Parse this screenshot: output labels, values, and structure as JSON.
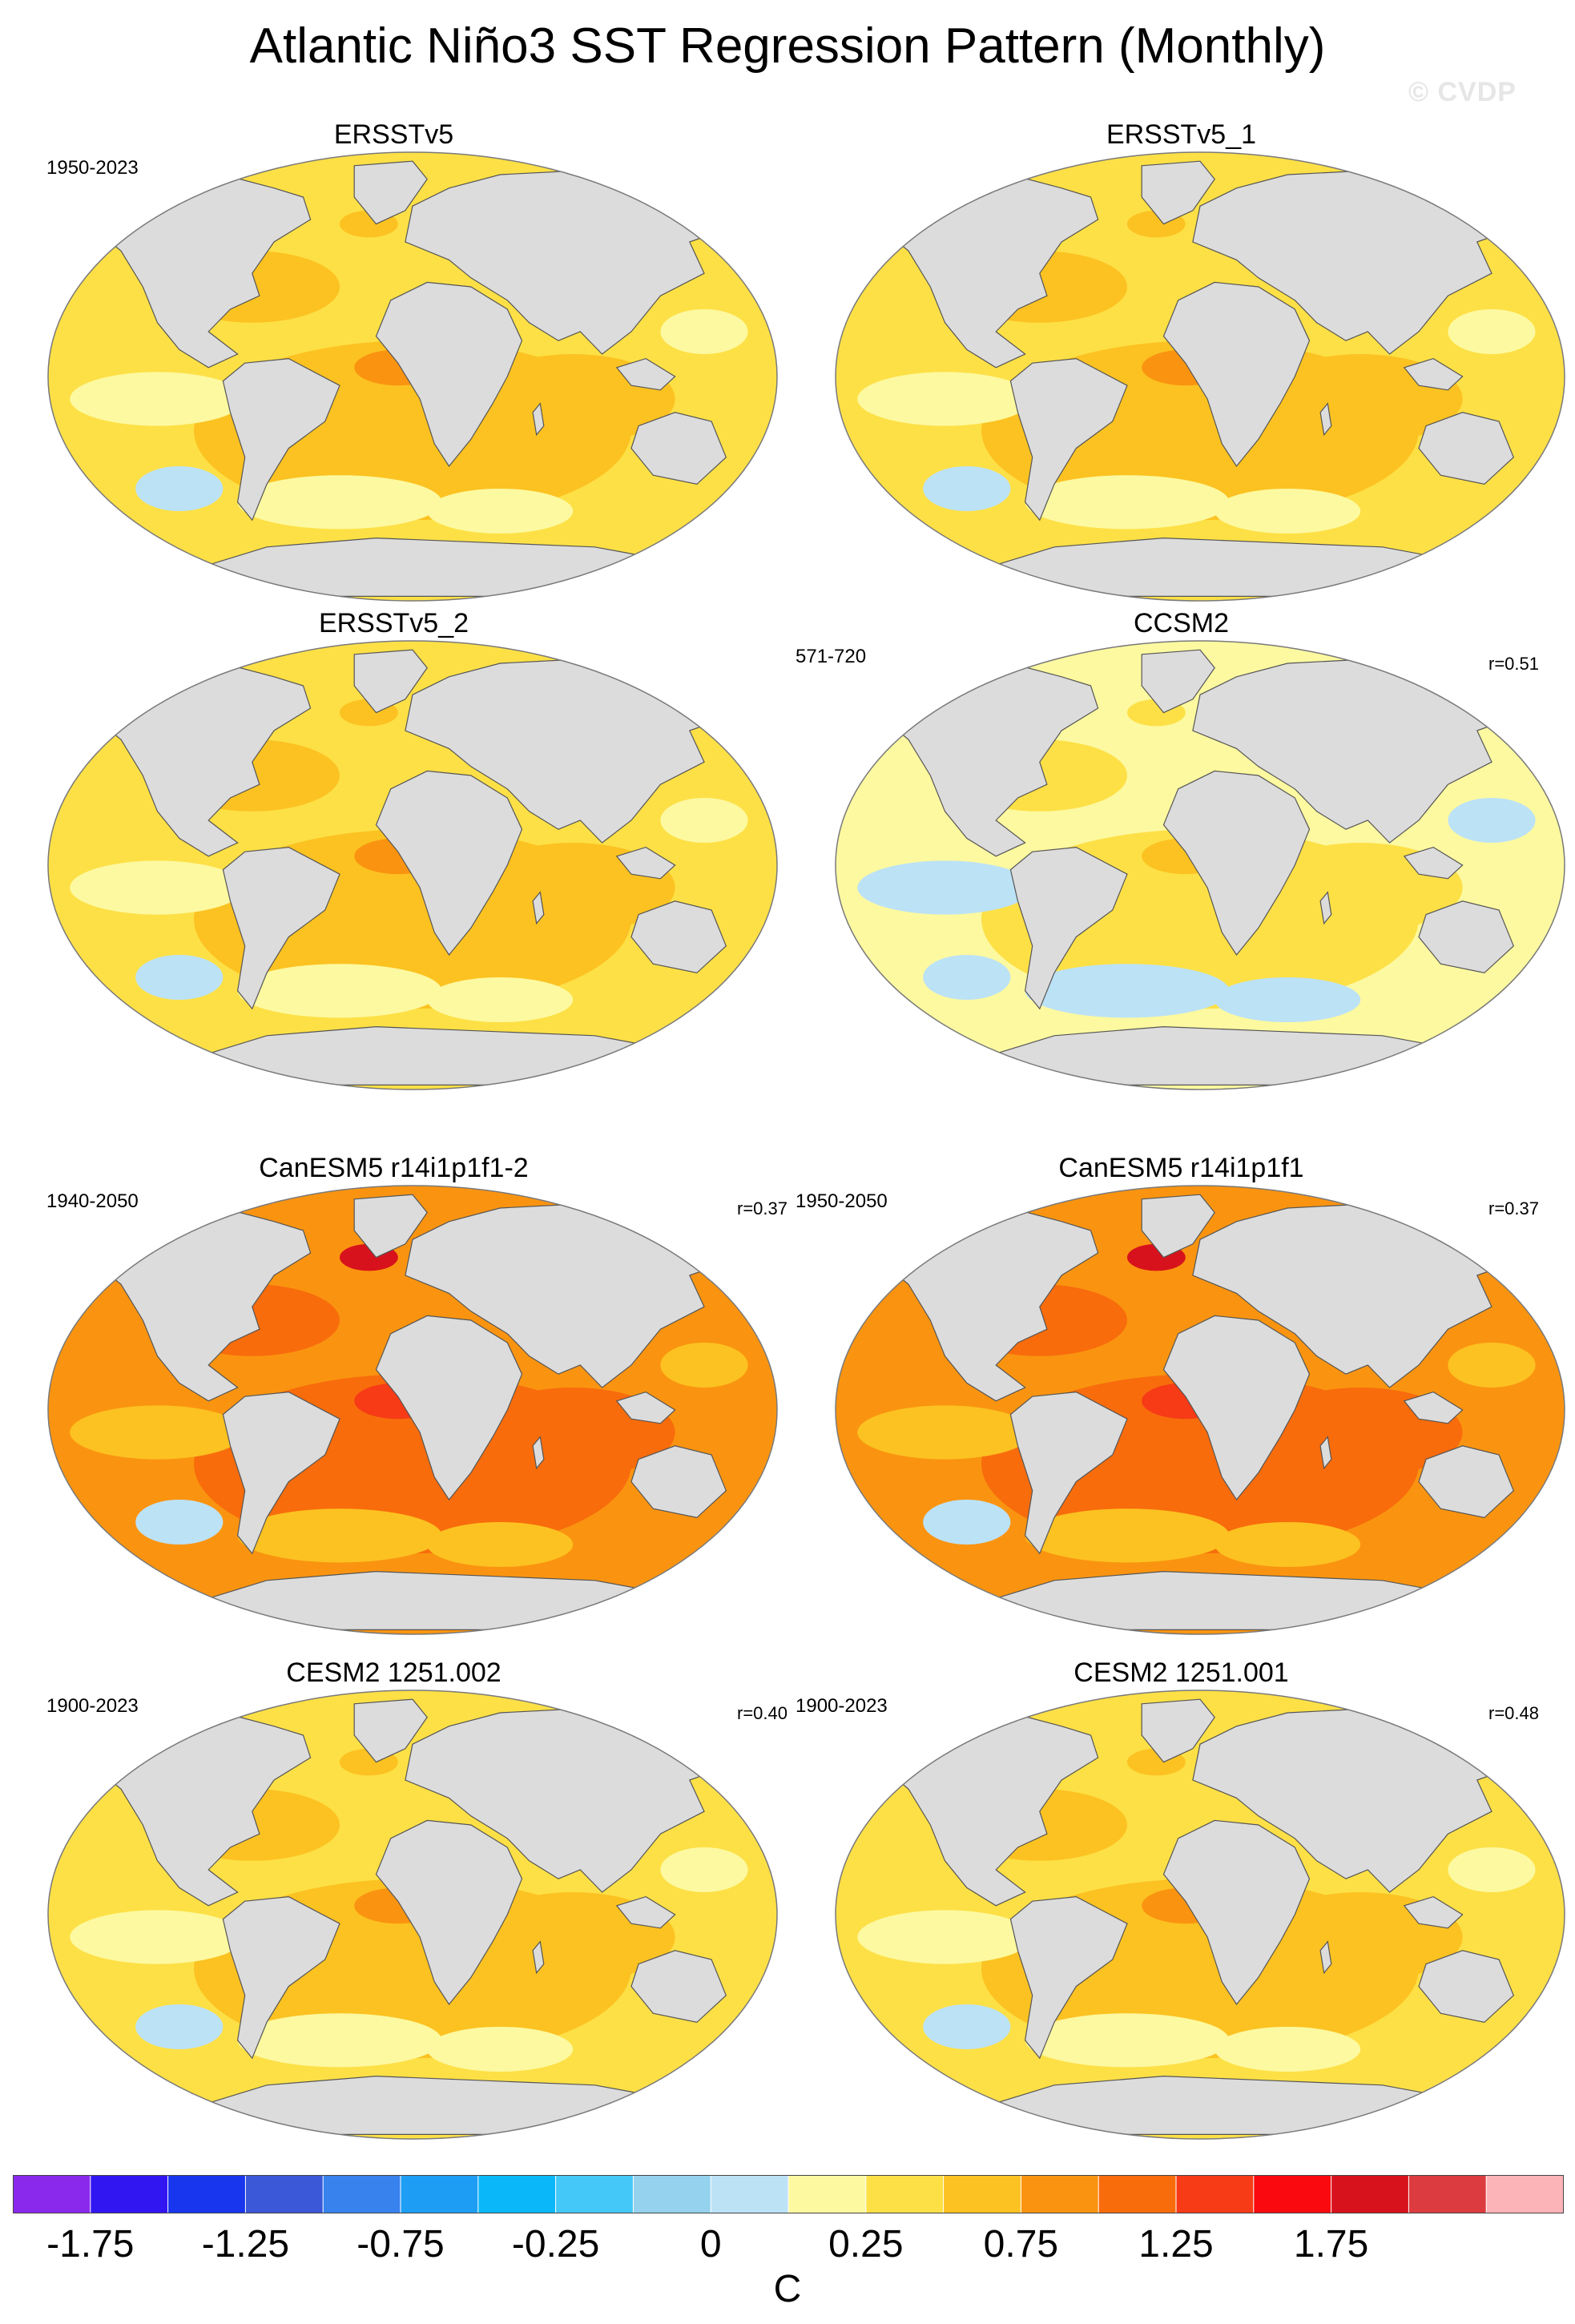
{
  "title": "Atlantic Niño3 SST Regression Pattern (Monthly)",
  "watermark": "© CVDP",
  "panels": [
    {
      "title": "ERSSTv5",
      "period": "1950-2023",
      "r": "",
      "ocean": "#fde046",
      "warm": "#fcc221",
      "cool": "#fdf9a0",
      "cold": "#bce2f6",
      "hot": "#fa9410",
      "peak": "#fcc221"
    },
    {
      "title": "ERSSTv5_1",
      "period": "",
      "r": "",
      "ocean": "#fde046",
      "warm": "#fcc221",
      "cool": "#fdf9a0",
      "cold": "#bce2f6",
      "hot": "#fa9410",
      "peak": "#fcc221"
    },
    {
      "title": "ERSSTv5_2",
      "period": "",
      "r": "",
      "ocean": "#fde046",
      "warm": "#fcc221",
      "cool": "#fdf9a0",
      "cold": "#bce2f6",
      "hot": "#fa9410",
      "peak": "#fcc221"
    },
    {
      "title": "CCSM2",
      "period": "571-720",
      "r": "r=0.51",
      "ocean": "#fdf9a0",
      "warm": "#fde046",
      "cool": "#bce2f6",
      "cold": "#bce2f6",
      "hot": "#fcc221",
      "peak": "#fde046"
    },
    {
      "title": "CanESM5 r14i1p1f1-2",
      "period": "1940-2050",
      "r": "r=0.37",
      "ocean": "#fa9410",
      "warm": "#f86c0c",
      "cool": "#fcc221",
      "cold": "#bce2f6",
      "hot": "#f63b16",
      "peak": "#d8121c"
    },
    {
      "title": "CanESM5 r14i1p1f1",
      "period": "1950-2050",
      "r": "r=0.37",
      "ocean": "#fa9410",
      "warm": "#f86c0c",
      "cool": "#fcc221",
      "cold": "#bce2f6",
      "hot": "#f63b16",
      "peak": "#d8121c"
    },
    {
      "title": "CESM2 1251.002",
      "period": "1900-2023",
      "r": "r=0.40",
      "ocean": "#fde046",
      "warm": "#fcc221",
      "cool": "#fdf9a0",
      "cold": "#bce2f6",
      "hot": "#fa9410",
      "peak": "#fcc221"
    },
    {
      "title": "CESM2 1251.001",
      "period": "1900-2023",
      "r": "r=0.48",
      "ocean": "#fde046",
      "warm": "#fcc221",
      "cool": "#fdf9a0",
      "cold": "#bce2f6",
      "hot": "#fa9410",
      "peak": "#fcc221"
    }
  ],
  "colorbar": {
    "colors": [
      "#8a28ec",
      "#3216f2",
      "#1836ee",
      "#3b58d8",
      "#3882ee",
      "#1d9ef4",
      "#0ab8fa",
      "#44c8f8",
      "#94d2ee",
      "#bce2f6",
      "#fdf9a0",
      "#fde046",
      "#fcc221",
      "#fa9410",
      "#f86c0c",
      "#f63b16",
      "#fa0a0e",
      "#d8121c",
      "#dc3c40",
      "#fcb4b8"
    ],
    "tick_labels": [
      "-1.75",
      "-1.25",
      "-0.75",
      "-0.25",
      "0",
      "0.25",
      "0.75",
      "1.25",
      "1.75"
    ],
    "units": "C"
  }
}
